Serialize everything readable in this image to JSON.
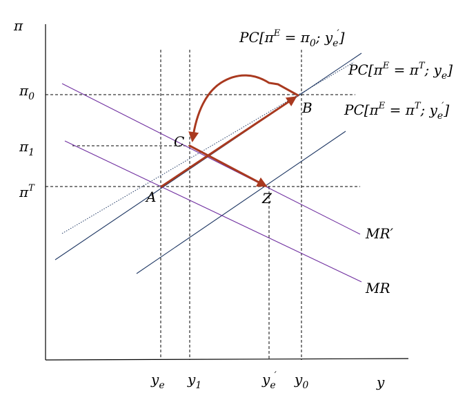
{
  "axes": {
    "y_axis_label": "π",
    "x_axis_label": "y"
  },
  "y_ticks": {
    "pi0": {
      "base": "π",
      "sub": "0"
    },
    "pi1": {
      "base": "π",
      "sub": "1"
    },
    "piT": {
      "base": "π",
      "sup": "T"
    }
  },
  "x_ticks": {
    "ye": {
      "base": "y",
      "sub": "e"
    },
    "y1": {
      "base": "y",
      "sub": "1"
    },
    "ye_prime": {
      "base": "y",
      "sub": "e",
      "prime": "′"
    },
    "y0": {
      "base": "y",
      "sub": "0"
    }
  },
  "curves": {
    "pc_top": {
      "pre": "PC[π",
      "sup": "E",
      "mid": " = π",
      "sub": "0",
      "sep": "; y",
      "sub2": "e",
      "prime": "′",
      "post": "]"
    },
    "pc_mid": {
      "pre": "PC[π",
      "sup": "E",
      "mid": " = π",
      "sup2": "T",
      "sep": "; y",
      "sub2": "e",
      "post": "]"
    },
    "pc_low": {
      "pre": "PC[π",
      "sup": "E",
      "mid": " = π",
      "sup2": "T",
      "sep": "; y",
      "sub2": "e",
      "prime": "′",
      "post": "]"
    },
    "mr_prime": "MR′",
    "mr": "MR"
  },
  "points": {
    "A": "A",
    "B": "B",
    "C": "C",
    "Z": "Z"
  },
  "colors": {
    "pc_line": "#1f3864",
    "mr_line": "#7030a0",
    "adjustment_path": "#a9391f"
  }
}
